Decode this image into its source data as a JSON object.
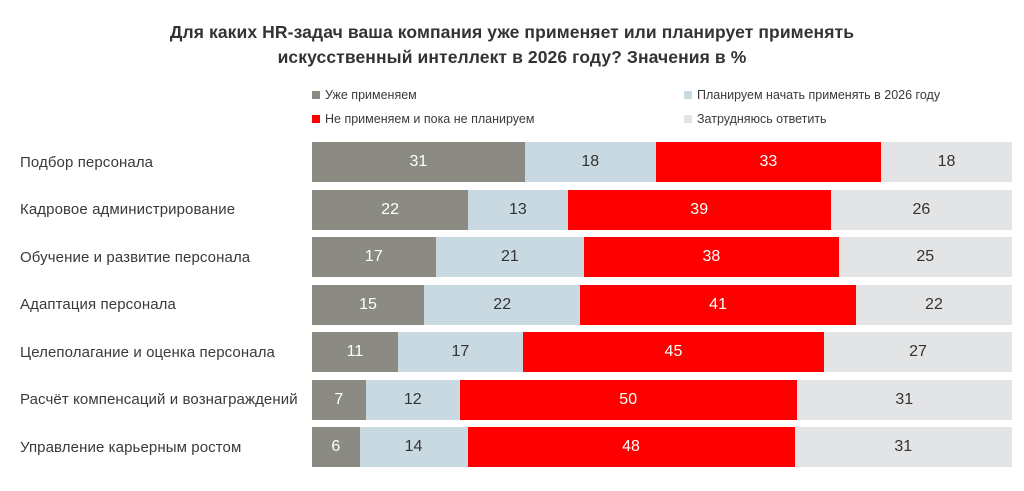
{
  "title": "Для каких HR-задач ваша компания уже применяет или планирует применять искусственный интеллект в 2026 году? Значения в %",
  "chart_data": {
    "type": "bar",
    "orientation": "horizontal",
    "stacked": true,
    "unit": "%",
    "xlim": [
      0,
      100
    ],
    "grid": false,
    "legend_position": "top",
    "series": [
      {
        "name": "Уже применяем",
        "color": "#8b8b83",
        "label_color": "#ffffff"
      },
      {
        "name": "Планируем начать применять в 2026 году",
        "color": "#c9d9e1",
        "label_color": "#333333"
      },
      {
        "name": "Не применяем и пока не планируем",
        "color": "#ff0000",
        "label_color": "#ffffff"
      },
      {
        "name": "Затрудняюсь ответить",
        "color": "#e2e4e6",
        "label_color": "#333333"
      }
    ],
    "legend_order": [
      0,
      2,
      1,
      3
    ],
    "categories": [
      "Подбор персонала",
      "Кадровое администрирование",
      "Обучение и развитие персонала",
      "Адаптация персонала",
      "Целеполагание и оценка персонала",
      "Расчёт компенсаций и вознаграждений",
      "Управление карьерным ростом"
    ],
    "rows": [
      {
        "label": "Подбор персонала",
        "values": [
          31,
          18,
          33,
          18
        ]
      },
      {
        "label": "Кадровое администрирование",
        "values": [
          22,
          13,
          39,
          26
        ]
      },
      {
        "label": "Обучение и развитие персонала",
        "values": [
          17,
          21,
          38,
          25
        ]
      },
      {
        "label": "Адаптация персонала",
        "values": [
          15,
          22,
          41,
          22
        ]
      },
      {
        "label": "Целеполагание и оценка персонала",
        "values": [
          11,
          17,
          45,
          27
        ]
      },
      {
        "label": "Расчёт компенсаций и вознаграждений",
        "values": [
          7,
          12,
          50,
          31
        ]
      },
      {
        "label": "Управление карьерным ростом",
        "values": [
          6,
          14,
          48,
          31
        ]
      }
    ]
  }
}
